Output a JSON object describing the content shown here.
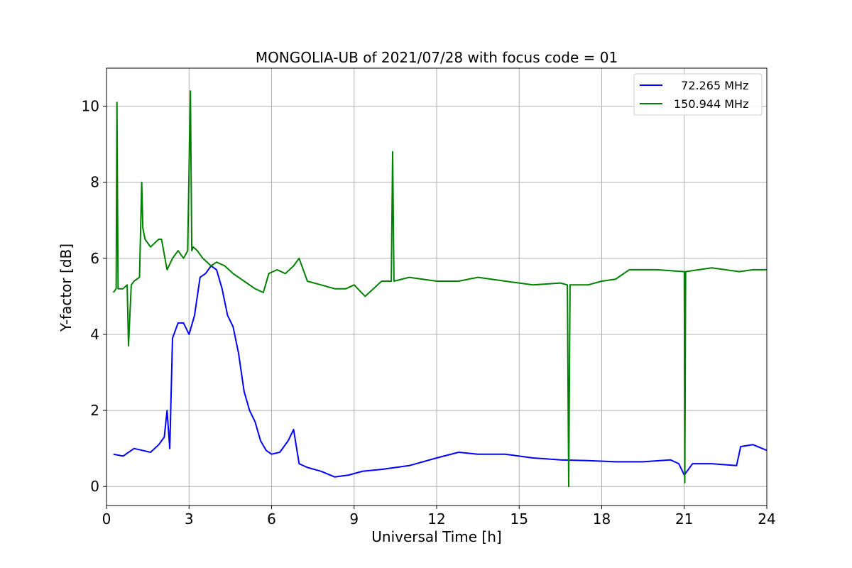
{
  "chart_data": {
    "type": "line",
    "title": "MONGOLIA-UB of 2021/07/28 with focus code = 01",
    "xlabel": "Universal Time [h]",
    "ylabel": "Y-factor [dB]",
    "xlim": [
      0,
      24
    ],
    "ylim": [
      -0.5,
      11
    ],
    "xticks": [
      0,
      3,
      6,
      9,
      12,
      15,
      18,
      21,
      24
    ],
    "yticks": [
      0,
      2,
      4,
      6,
      8,
      10
    ],
    "grid": true,
    "legend_position": "top-right",
    "series": [
      {
        "name": "  72.265 MHz",
        "color": "#0000ff",
        "x": [
          0.25,
          0.6,
          1.0,
          1.3,
          1.6,
          1.9,
          2.1,
          2.2,
          2.3,
          2.4,
          2.6,
          2.8,
          3.0,
          3.2,
          3.4,
          3.6,
          3.8,
          4.0,
          4.2,
          4.4,
          4.6,
          4.8,
          5.0,
          5.2,
          5.4,
          5.6,
          5.8,
          6.0,
          6.3,
          6.6,
          6.8,
          7.0,
          7.3,
          7.8,
          8.3,
          8.8,
          9.3,
          10.0,
          11.0,
          12.0,
          12.8,
          13.5,
          14.5,
          15.5,
          16.5,
          17.5,
          18.5,
          19.5,
          20.5,
          20.8,
          21.0,
          21.3,
          22.0,
          22.9,
          23.05,
          23.5,
          24.0
        ],
        "y": [
          0.85,
          0.8,
          1.0,
          0.95,
          0.9,
          1.1,
          1.3,
          2.0,
          1.0,
          3.9,
          4.3,
          4.3,
          4.0,
          4.5,
          5.5,
          5.6,
          5.8,
          5.7,
          5.2,
          4.5,
          4.2,
          3.5,
          2.5,
          2.0,
          1.7,
          1.2,
          0.95,
          0.85,
          0.9,
          1.2,
          1.5,
          0.6,
          0.5,
          0.4,
          0.25,
          0.3,
          0.4,
          0.45,
          0.55,
          0.75,
          0.9,
          0.85,
          0.85,
          0.75,
          0.7,
          0.68,
          0.65,
          0.65,
          0.7,
          0.6,
          0.3,
          0.6,
          0.6,
          0.55,
          1.05,
          1.1,
          0.95
        ]
      },
      {
        "name": "150.944 MHz",
        "color": "#008000",
        "x": [
          0.25,
          0.35,
          0.38,
          0.42,
          0.6,
          0.75,
          0.8,
          0.9,
          1.0,
          1.2,
          1.28,
          1.32,
          1.4,
          1.6,
          1.9,
          2.0,
          2.2,
          2.4,
          2.6,
          2.8,
          2.95,
          3.05,
          3.1,
          3.15,
          3.3,
          3.5,
          3.8,
          4.0,
          4.3,
          4.6,
          5.0,
          5.4,
          5.7,
          5.9,
          6.2,
          6.5,
          6.8,
          7.0,
          7.3,
          7.8,
          8.3,
          8.7,
          9.0,
          9.4,
          10.0,
          10.35,
          10.4,
          10.45,
          11.0,
          12.0,
          12.8,
          13.5,
          14.5,
          15.5,
          16.5,
          16.75,
          16.8,
          16.85,
          17.5,
          18.0,
          18.5,
          19.0,
          20.0,
          21.0,
          21.02,
          21.05,
          22.0,
          23.0,
          23.5,
          24.0
        ],
        "y": [
          5.1,
          5.2,
          10.1,
          5.2,
          5.2,
          5.3,
          3.7,
          5.3,
          5.4,
          5.5,
          8.0,
          6.8,
          6.5,
          6.3,
          6.5,
          6.5,
          5.7,
          6.0,
          6.2,
          6.0,
          6.2,
          10.4,
          6.2,
          6.3,
          6.2,
          6.0,
          5.8,
          5.9,
          5.8,
          5.6,
          5.4,
          5.2,
          5.1,
          5.6,
          5.7,
          5.6,
          5.8,
          6.0,
          5.4,
          5.3,
          5.2,
          5.2,
          5.3,
          5.0,
          5.4,
          5.4,
          8.8,
          5.4,
          5.5,
          5.4,
          5.4,
          5.5,
          5.4,
          5.3,
          5.35,
          5.3,
          0.0,
          5.3,
          5.3,
          5.4,
          5.45,
          5.7,
          5.7,
          5.65,
          0.1,
          5.65,
          5.75,
          5.65,
          5.7,
          5.7
        ]
      }
    ]
  }
}
